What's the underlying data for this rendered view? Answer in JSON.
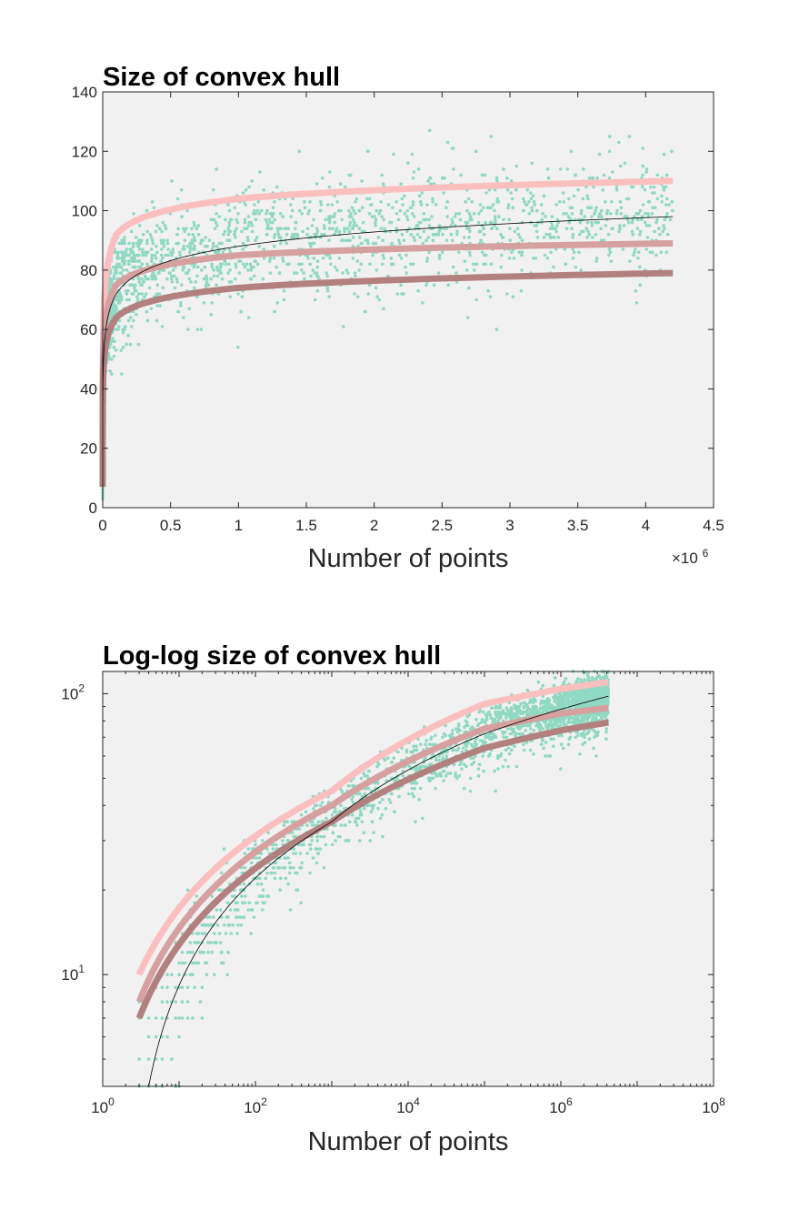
{
  "chart_data": [
    {
      "type": "scatter",
      "title": "Size of convex hull",
      "xlabel": "Number of points",
      "ylabel": "",
      "x_scale": "linear",
      "y_scale": "linear",
      "xlim": [
        0,
        4500000
      ],
      "ylim": [
        0,
        140
      ],
      "x_multiplier_label": "×10",
      "x_multiplier_exponent": "6",
      "x_ticks": [
        0,
        500000,
        1000000,
        1500000,
        2000000,
        2500000,
        3000000,
        3500000,
        4000000,
        4500000
      ],
      "x_tick_labels": [
        "0",
        "0.5",
        "1",
        "1.5",
        "2",
        "2.5",
        "3",
        "3.5",
        "4",
        "4.5"
      ],
      "y_ticks": [
        0,
        20,
        40,
        60,
        80,
        100,
        120,
        140
      ],
      "y_tick_labels": [
        "0",
        "20",
        "40",
        "60",
        "80",
        "100",
        "120",
        "140"
      ],
      "grid": false,
      "legend": "none",
      "scatter_color": "#8fd8c1",
      "scatter_x_range": [
        3,
        4200000
      ],
      "scatter_points": 2600,
      "curves": [
        {
          "color": "#fcbfbf",
          "width": 7,
          "x": [
            3,
            4200000
          ],
          "y_at_x": [
            [
              3,
              10
            ],
            [
              1000,
              45
            ],
            [
              100000,
              92
            ],
            [
              1000000,
              104
            ],
            [
              4200000,
              110
            ]
          ]
        },
        {
          "color": "#d6a0a0",
          "width": 7,
          "x": [
            3,
            4200000
          ],
          "y_at_x": [
            [
              3,
              8
            ],
            [
              1000,
              40
            ],
            [
              100000,
              75
            ],
            [
              1000000,
              85
            ],
            [
              4200000,
              89
            ]
          ]
        },
        {
          "color": "#b38080",
          "width": 7,
          "x": [
            3,
            4200000
          ],
          "y_at_x": [
            [
              3,
              7
            ],
            [
              1000,
              35
            ],
            [
              100000,
              64
            ],
            [
              1000000,
              74
            ],
            [
              4200000,
              79
            ]
          ]
        },
        {
          "color": "#000000",
          "width": 0.8,
          "x": [
            4,
            4200000
          ],
          "y_at_x": [
            [
              4,
              4
            ],
            [
              1000,
              35
            ],
            [
              100000,
              72
            ],
            [
              1000000,
              88
            ],
            [
              4200000,
              98
            ]
          ]
        }
      ]
    },
    {
      "type": "scatter",
      "title": "Log-log size of convex hull",
      "xlabel": "Number of points",
      "ylabel": "",
      "x_scale": "log",
      "y_scale": "log",
      "xlim": [
        1,
        100000000
      ],
      "ylim": [
        4,
        120
      ],
      "x_ticks": [
        1,
        100,
        10000,
        1000000,
        100000000
      ],
      "x_tick_labels": [
        {
          "base": "10",
          "exp": "0"
        },
        {
          "base": "10",
          "exp": "2"
        },
        {
          "base": "10",
          "exp": "4"
        },
        {
          "base": "10",
          "exp": "6"
        },
        {
          "base": "10",
          "exp": "8"
        }
      ],
      "y_ticks": [
        10,
        100
      ],
      "y_tick_labels": [
        {
          "base": "10",
          "exp": "1"
        },
        {
          "base": "10",
          "exp": "2"
        }
      ],
      "grid": false,
      "legend": "none",
      "scatter_color": "#8fd8c1",
      "scatter_x_range": [
        3,
        4200000
      ],
      "scatter_points": 2600
    }
  ]
}
